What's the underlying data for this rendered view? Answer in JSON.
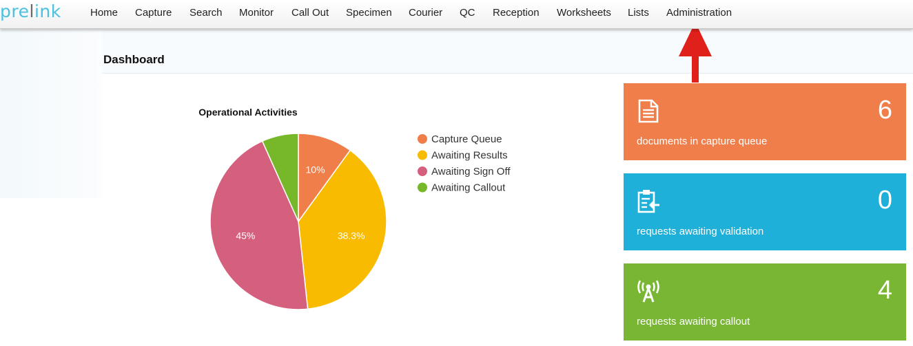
{
  "brand": {
    "logo_prefix": "pre",
    "logo_mid": "l",
    "logo_suffix": "ink"
  },
  "nav": {
    "items": [
      "Home",
      "Capture",
      "Search",
      "Monitor",
      "Call Out",
      "Specimen",
      "Courier",
      "QC",
      "Reception",
      "Worksheets",
      "Lists",
      "Administration"
    ]
  },
  "page": {
    "title": "Dashboard"
  },
  "chart_data": {
    "type": "pie",
    "title": "Operational Activities",
    "categories": [
      "Capture Queue",
      "Awaiting Results",
      "Awaiting Sign Off",
      "Awaiting Callout"
    ],
    "values": [
      10,
      38.3,
      45,
      6.7
    ],
    "slice_labels": [
      "10%",
      "38.3%",
      "45%",
      ""
    ],
    "colors": [
      "#f07e4b",
      "#f9bb00",
      "#d5607d",
      "#76b82a"
    ],
    "legend": "right"
  },
  "cards": [
    {
      "count": "6",
      "caption": "documents in capture queue",
      "icon": "document-icon",
      "color": "#f07e4b"
    },
    {
      "count": "0",
      "caption": "requests awaiting validation",
      "icon": "clipboard-validation-icon",
      "color": "#1eb0d8"
    },
    {
      "count": "4",
      "caption": "requests awaiting callout",
      "icon": "radio-antenna-icon",
      "color": "#78b634"
    }
  ],
  "annotation": {
    "arrow_color": "#e0201b"
  }
}
